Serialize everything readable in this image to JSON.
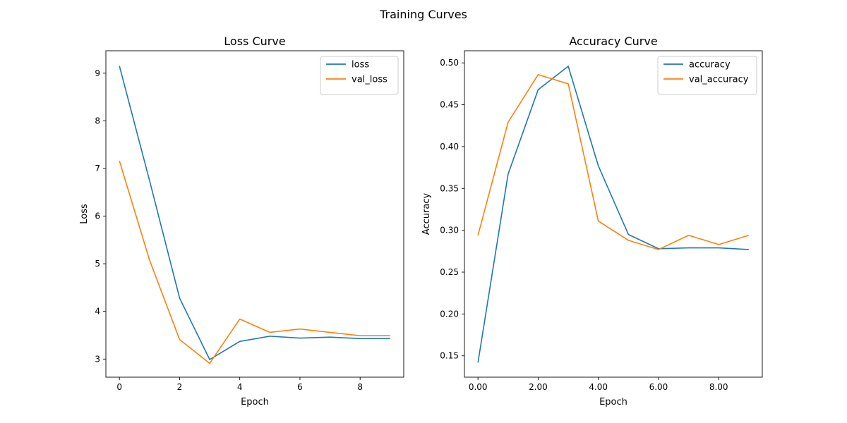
{
  "figure": {
    "suptitle": "Training Curves"
  },
  "chart_data": [
    {
      "type": "line",
      "title": "Loss Curve",
      "xlabel": "Epoch",
      "ylabel": "Loss",
      "xlim": [
        -0.45,
        9.45
      ],
      "ylim": [
        2.62,
        9.47
      ],
      "xticks": [
        0,
        2,
        4,
        6,
        8
      ],
      "yticks": [
        3,
        4,
        5,
        6,
        7,
        8,
        9
      ],
      "tick_format": "int",
      "grid": false,
      "legend_position": "top-right",
      "x": [
        0,
        1,
        2,
        3,
        4,
        5,
        6,
        7,
        8,
        9
      ],
      "series": [
        {
          "name": "loss",
          "color": "#1f77b4",
          "values": [
            9.15,
            6.75,
            4.28,
            2.99,
            3.37,
            3.48,
            3.44,
            3.46,
            3.43,
            3.43
          ]
        },
        {
          "name": "val_loss",
          "color": "#ff7f0e",
          "values": [
            7.16,
            5.08,
            3.41,
            2.91,
            3.84,
            3.56,
            3.63,
            3.56,
            3.49,
            3.49
          ]
        }
      ]
    },
    {
      "type": "line",
      "title": "Accuracy Curve",
      "xlabel": "Epoch",
      "ylabel": "Accuracy",
      "xlim": [
        -0.45,
        9.45
      ],
      "ylim": [
        0.1245,
        0.5145
      ],
      "xticks": [
        0,
        2,
        4,
        6,
        8
      ],
      "yticks": [
        0.15,
        0.2,
        0.25,
        0.3,
        0.35,
        0.4,
        0.45,
        0.5
      ],
      "tick_format": "2dp",
      "grid": false,
      "legend_position": "top-right",
      "x": [
        0,
        1,
        2,
        3,
        4,
        5,
        6,
        7,
        8,
        9
      ],
      "series": [
        {
          "name": "accuracy",
          "color": "#1f77b4",
          "values": [
            0.142,
            0.367,
            0.468,
            0.496,
            0.377,
            0.295,
            0.278,
            0.279,
            0.279,
            0.277
          ]
        },
        {
          "name": "val_accuracy",
          "color": "#ff7f0e",
          "values": [
            0.294,
            0.429,
            0.486,
            0.475,
            0.311,
            0.288,
            0.277,
            0.294,
            0.283,
            0.294
          ]
        }
      ]
    }
  ]
}
